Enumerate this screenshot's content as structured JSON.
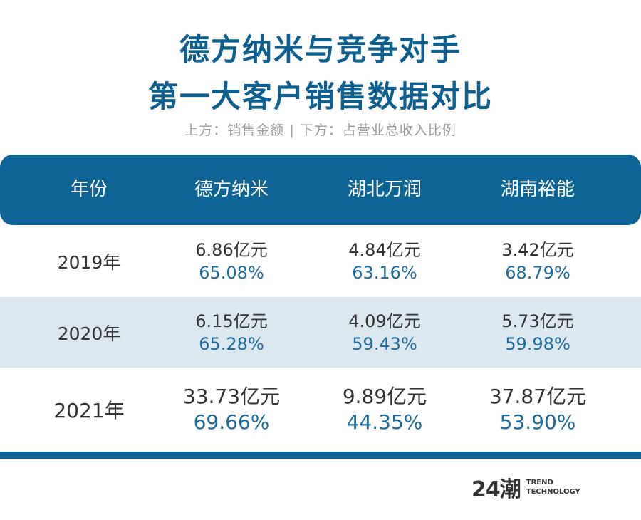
{
  "title_line1": "德方纳米与竞争对手",
  "title_line2": "第一大客户销售数据对比",
  "subtitle": "上方：销售金额  |  下方：占营业总收入比例",
  "colors": {
    "header": "#0f6496",
    "title": "#0d5f8f",
    "percent": "#1c6b9e",
    "stripe": "#dce8ef"
  },
  "chart_data": {
    "type": "table",
    "columns": [
      "年份",
      "德方纳米",
      "湖北万润",
      "湖南裕能"
    ],
    "rows": [
      {
        "year": "2019年",
        "cells": [
          {
            "amount": "6.86亿元",
            "pct": "65.08%"
          },
          {
            "amount": "4.84亿元",
            "pct": "63.16%"
          },
          {
            "amount": "3.42亿元",
            "pct": "68.79%"
          }
        ]
      },
      {
        "year": "2020年",
        "cells": [
          {
            "amount": "6.15亿元",
            "pct": "65.28%"
          },
          {
            "amount": "4.09亿元",
            "pct": "59.43%"
          },
          {
            "amount": "5.73亿元",
            "pct": "59.98%"
          }
        ]
      },
      {
        "year": "2021年",
        "cells": [
          {
            "amount": "33.73亿元",
            "pct": "69.66%"
          },
          {
            "amount": "9.89亿元",
            "pct": "44.35%"
          },
          {
            "amount": "37.87亿元",
            "pct": "53.90%"
          }
        ]
      }
    ]
  },
  "logo": {
    "mark": "24潮",
    "line1": "TREND",
    "line2": "TECHNOLOGY"
  }
}
